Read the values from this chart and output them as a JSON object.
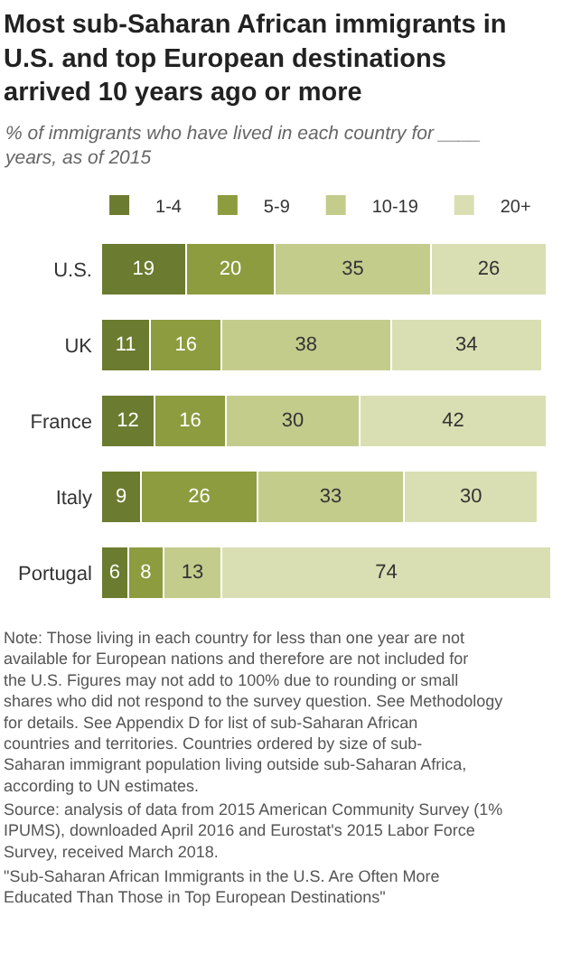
{
  "chart_data": {
    "type": "bar",
    "orientation": "horizontal",
    "stacked": true,
    "title": "Most sub-Saharan African immigrants in U.S. and top European destinations arrived 10 years ago or more",
    "subtitle": "% of immigrants who have lived in each country for ____ years, as of 2015",
    "categories": [
      "U.S.",
      "UK",
      "France",
      "Italy",
      "Portugal"
    ],
    "series": [
      {
        "name": "1-4",
        "color": "#6b7b2f",
        "values": [
          19,
          11,
          12,
          9,
          6
        ]
      },
      {
        "name": "5-9",
        "color": "#8c9c3f",
        "values": [
          20,
          16,
          16,
          26,
          8
        ]
      },
      {
        "name": "10-19",
        "color": "#c4cc8c",
        "values": [
          35,
          38,
          30,
          33,
          13
        ]
      },
      {
        "name": "20+",
        "color": "#d9dfb2",
        "values": [
          26,
          34,
          42,
          30,
          74
        ]
      }
    ],
    "data_labels": true,
    "legend": "top",
    "annotations": [
      "Note: Those living in each country for less than one year are not available for European nations and therefore are not included for the U.S. Figures may not add to 100% due to rounding or small shares who did not respond to the survey question. See Methodology for details. See Appendix D for list of sub-Saharan African countries and territories. Countries ordered by size of sub-Saharan immigrant population living outside sub-Saharan Africa, according to UN estimates.",
      "Source: analysis of data from 2015 American Community Survey (1% IPUMS), downloaded April 2016 and Eurostat's 2015 Labor Force Survey, received March 2018.",
      "\"Sub-Saharan African Immigrants in the U.S. Are Often More Educated Than Those in Top European Destinations\""
    ]
  }
}
